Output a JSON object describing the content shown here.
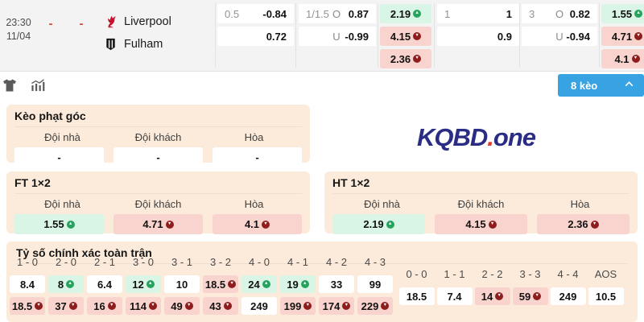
{
  "match": {
    "time": "23:30",
    "date": "11/04",
    "home_score": "-",
    "away_score": "-",
    "home_team": "Liverpool",
    "away_team": "Fulham"
  },
  "odds": {
    "handicap_ht": {
      "line": "0.5",
      "row1": "-0.84",
      "row2": "0.72"
    },
    "ou_ht": {
      "line": "1/1.5",
      "over_label": "O",
      "row1": "0.87",
      "under_label": "U",
      "row2": "-0.99"
    },
    "x12_ht": {
      "cells": [
        {
          "value": "2.19",
          "bg": "green",
          "trend": "up"
        },
        {
          "value": "4.15",
          "bg": "pink",
          "trend": "down"
        },
        {
          "value": "2.36",
          "bg": "pink",
          "trend": "down"
        }
      ]
    },
    "handicap_ft": {
      "line": "1",
      "row1": "1",
      "row2": "0.9"
    },
    "ou_ft": {
      "line": "3",
      "over_label": "O",
      "row1": "0.82",
      "under_label": "U",
      "row2": "-0.94"
    },
    "x12_ft": {
      "cells": [
        {
          "value": "1.55",
          "bg": "green",
          "trend": "up"
        },
        {
          "value": "4.71",
          "bg": "pink",
          "trend": "down"
        },
        {
          "value": "4.1",
          "bg": "pink",
          "trend": "down"
        }
      ]
    }
  },
  "toolbar": {
    "odds_count_label": "8 kèo"
  },
  "watermark": {
    "main": "KQBD",
    "dot": ".",
    "suffix": "one"
  },
  "sections": {
    "corner": {
      "title": "Kèo phạt góc",
      "headers": [
        "Đội nhà",
        "Đội khách",
        "Hòa"
      ],
      "cells": [
        {
          "value": "-",
          "bg": "white"
        },
        {
          "value": "-",
          "bg": "white"
        },
        {
          "value": "-",
          "bg": "white"
        }
      ]
    },
    "ft": {
      "title": "FT 1×2",
      "headers": [
        "Đội nhà",
        "Đội khách",
        "Hòa"
      ],
      "cells": [
        {
          "value": "1.55",
          "bg": "green",
          "trend": "up"
        },
        {
          "value": "4.71",
          "bg": "pink",
          "trend": "down"
        },
        {
          "value": "4.1",
          "bg": "pink",
          "trend": "down"
        }
      ]
    },
    "ht": {
      "title": "HT 1×2",
      "headers": [
        "Đội nhà",
        "Đội khách",
        "Hòa"
      ],
      "cells": [
        {
          "value": "2.19",
          "bg": "green",
          "trend": "up"
        },
        {
          "value": "4.15",
          "bg": "pink",
          "trend": "down"
        },
        {
          "value": "2.36",
          "bg": "pink",
          "trend": "down"
        }
      ]
    },
    "correct_score": {
      "title": "Tỷ số chính xác toàn trận",
      "columns": [
        {
          "label": "1 - 0",
          "top": {
            "value": "8.4",
            "bg": "white"
          },
          "bottom": {
            "value": "18.5",
            "bg": "pink",
            "trend": "down"
          }
        },
        {
          "label": "2 - 0",
          "top": {
            "value": "8",
            "bg": "green",
            "trend": "up"
          },
          "bottom": {
            "value": "37",
            "bg": "pink",
            "trend": "down"
          }
        },
        {
          "label": "2 - 1",
          "top": {
            "value": "6.4",
            "bg": "white"
          },
          "bottom": {
            "value": "16",
            "bg": "pink",
            "trend": "down"
          }
        },
        {
          "label": "3 - 0",
          "top": {
            "value": "12",
            "bg": "green",
            "trend": "up"
          },
          "bottom": {
            "value": "114",
            "bg": "pink",
            "trend": "down"
          }
        },
        {
          "label": "3 - 1",
          "top": {
            "value": "10",
            "bg": "white"
          },
          "bottom": {
            "value": "49",
            "bg": "pink",
            "trend": "down"
          }
        },
        {
          "label": "3 - 2",
          "top": {
            "value": "18.5",
            "bg": "pink",
            "trend": "down"
          },
          "bottom": {
            "value": "43",
            "bg": "pink",
            "trend": "down"
          }
        },
        {
          "label": "4 - 0",
          "top": {
            "value": "24",
            "bg": "green",
            "trend": "up"
          },
          "bottom": {
            "value": "249",
            "bg": "white"
          }
        },
        {
          "label": "4 - 1",
          "top": {
            "value": "19",
            "bg": "green",
            "trend": "up"
          },
          "bottom": {
            "value": "199",
            "bg": "pink",
            "trend": "down"
          }
        },
        {
          "label": "4 - 2",
          "top": {
            "value": "33",
            "bg": "white"
          },
          "bottom": {
            "value": "174",
            "bg": "pink",
            "trend": "down"
          }
        },
        {
          "label": "4 - 3",
          "top": {
            "value": "99",
            "bg": "white"
          },
          "bottom": {
            "value": "229",
            "bg": "pink",
            "trend": "down"
          }
        }
      ],
      "draw_columns": [
        {
          "label": "0 - 0",
          "value": "18.5",
          "bg": "white"
        },
        {
          "label": "1 - 1",
          "value": "7.4",
          "bg": "white"
        },
        {
          "label": "2 - 2",
          "value": "14",
          "bg": "pink",
          "trend": "down"
        },
        {
          "label": "3 - 3",
          "value": "59",
          "bg": "pink",
          "trend": "down"
        },
        {
          "label": "4 - 4",
          "value": "249",
          "bg": "white"
        },
        {
          "label": "AOS",
          "value": "10.5",
          "bg": "white"
        }
      ]
    }
  },
  "colors": {
    "accent_blue": "#37a3e3",
    "up_green": "#27a35f",
    "down_red": "#8e1e1e",
    "cell_green": "#d8f5e6",
    "cell_pink": "#f9d3cd",
    "panel_peach": "#fcebda",
    "brand_navy": "#2b2d84",
    "brand_red": "#e03c31",
    "score_dash_red": "#d9453f"
  }
}
